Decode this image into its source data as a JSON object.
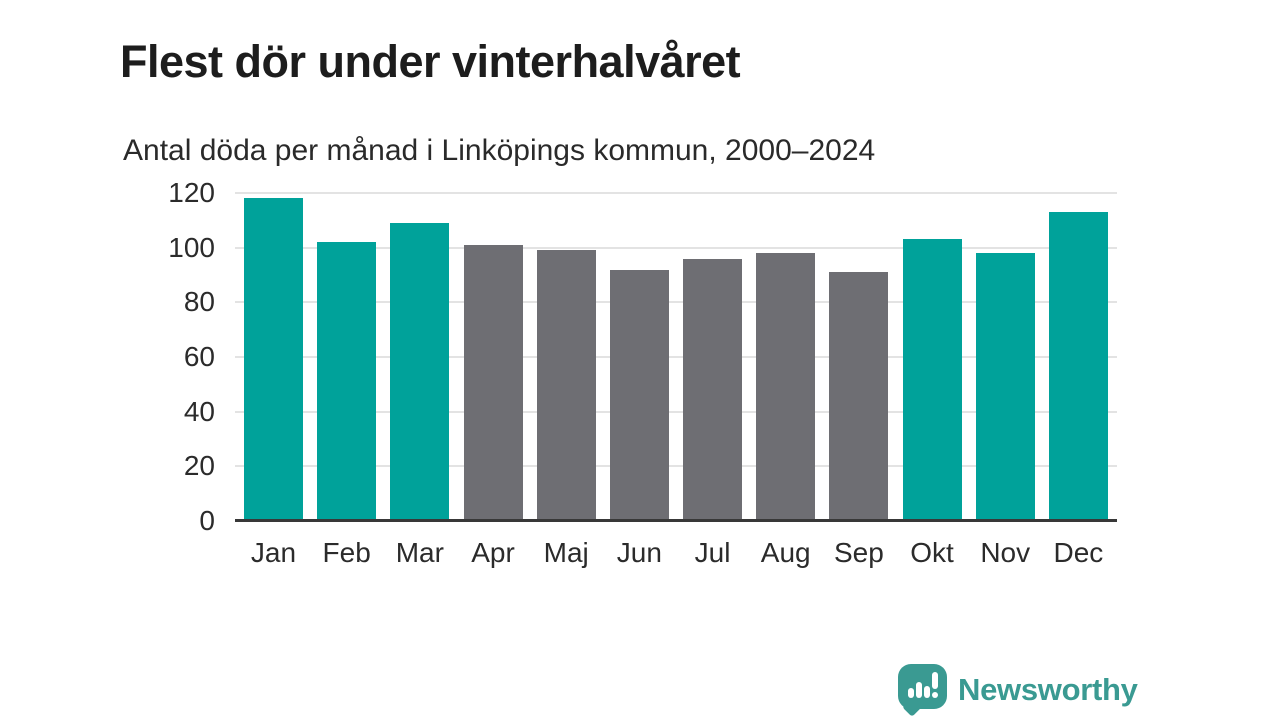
{
  "header": {
    "title": "Flest dör under vinterhalvåret",
    "subtitle": "Antal döda per månad i Linköpings kommun, 2000–2024"
  },
  "branding": {
    "name": "Newsworthy",
    "icon": "bar-chart-speech-bubble-icon",
    "color": "#3a9a92"
  },
  "colors": {
    "winter_bar": "#00a29a",
    "summer_bar": "#6e6e73",
    "gridline": "#e3e3e3",
    "axis": "#383838",
    "title_text": "#1d1d1d",
    "label_text": "#2b2b2b"
  },
  "chart_data": {
    "type": "bar",
    "title": "Flest dör under vinterhalvåret",
    "subtitle": "Antal döda per månad i Linköpings kommun, 2000–2024",
    "categories": [
      "Jan",
      "Feb",
      "Mar",
      "Apr",
      "Maj",
      "Jun",
      "Jul",
      "Aug",
      "Sep",
      "Okt",
      "Nov",
      "Dec"
    ],
    "values": [
      118,
      102,
      109,
      101,
      99,
      92,
      96,
      98,
      91,
      103,
      98,
      113
    ],
    "bar_color_keys": [
      "winter_bar",
      "winter_bar",
      "winter_bar",
      "summer_bar",
      "summer_bar",
      "summer_bar",
      "summer_bar",
      "summer_bar",
      "summer_bar",
      "winter_bar",
      "winter_bar",
      "winter_bar"
    ],
    "xlabel": "",
    "ylabel": "",
    "ylim": [
      0,
      120
    ],
    "yticks": [
      0,
      20,
      40,
      60,
      80,
      100,
      120
    ],
    "grid": "horizontal",
    "legend": "none"
  }
}
